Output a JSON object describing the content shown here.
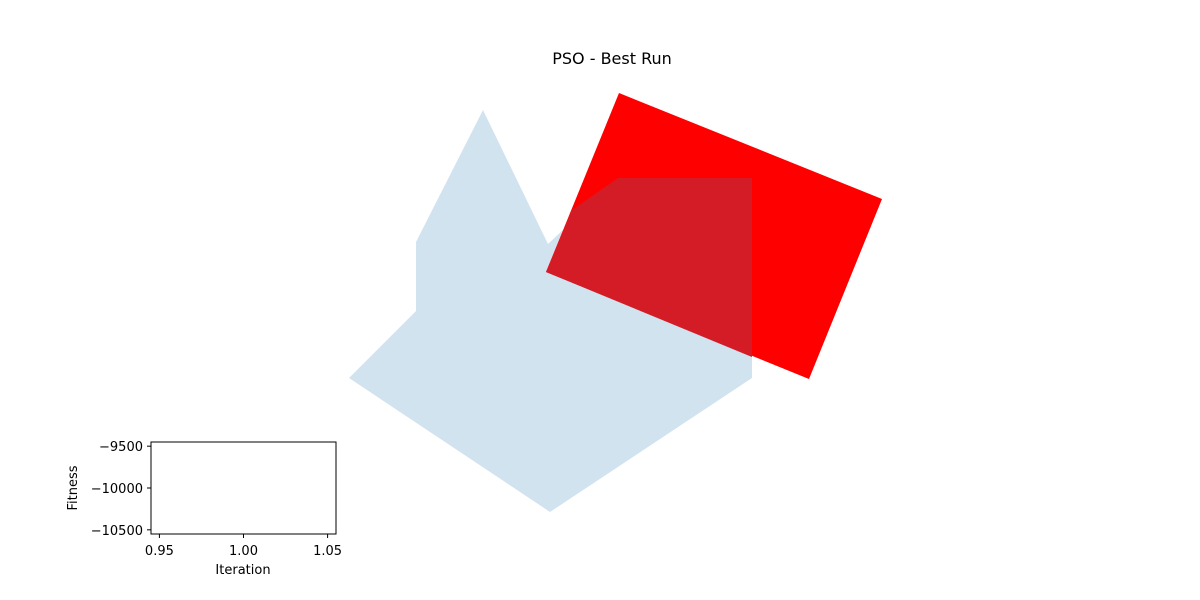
{
  "figure": {
    "title": "PSO - Best Run"
  },
  "colors": {
    "region_fill": "#d2e3f0",
    "best_box": "#ff0000",
    "overlap_tint": "#d41c26"
  },
  "chart_data": [
    {
      "type": "area",
      "role": "main-panel",
      "title": "PSO - Best Run",
      "xlabel": "",
      "ylabel": "",
      "grid": false,
      "axes_visible": false,
      "series": []
    },
    {
      "type": "line",
      "role": "fitness-inset",
      "title": "",
      "xlabel": "Iteration",
      "ylabel": "Fitness",
      "xlim": [
        0.945,
        1.055
      ],
      "ylim": [
        -10550,
        -9450
      ],
      "x_ticks": [
        0.95,
        1.0,
        1.05
      ],
      "x_tick_labels": [
        "0.95",
        "1.00",
        "1.05"
      ],
      "y_ticks": [
        -9500,
        -10000,
        -10500
      ],
      "y_tick_labels": [
        "−9500",
        "−10000",
        "−10500"
      ],
      "grid": false,
      "series": []
    }
  ]
}
